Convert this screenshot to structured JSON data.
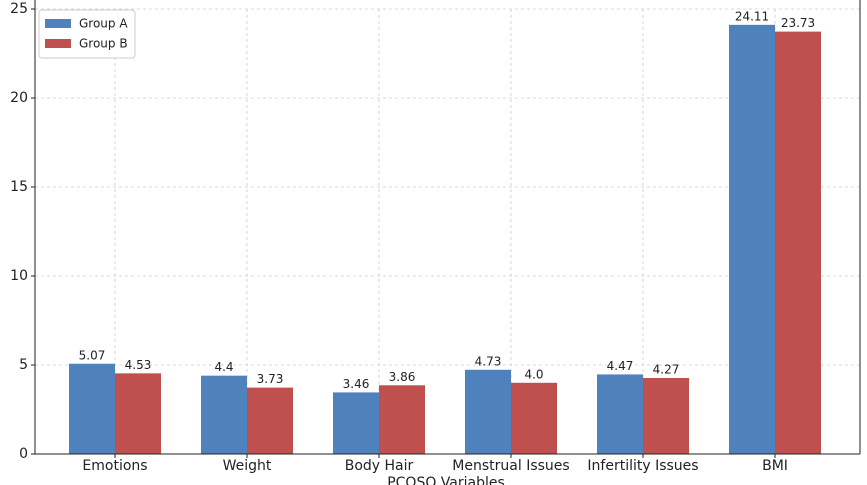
{
  "chart_data": {
    "type": "bar",
    "x_label": "PCOSQ Variables",
    "categories": [
      "Emotions",
      "Weight",
      "Body Hair",
      "Menstrual Issues",
      "Infertility Issues",
      "BMI"
    ],
    "series": [
      {
        "name": "Group A",
        "color": "#4f81bd",
        "values": [
          5.07,
          4.4,
          3.46,
          4.73,
          4.47,
          24.11
        ],
        "value_labels": [
          "5.07",
          "4.4",
          "3.46",
          "4.73",
          "4.47",
          "24.11"
        ]
      },
      {
        "name": "Group B",
        "color": "#c0504d",
        "values": [
          4.53,
          3.73,
          3.86,
          4,
          4.27,
          23.73
        ],
        "value_labels": [
          "4.53",
          "3.73",
          "3.86",
          "4.0",
          "4.27",
          "23.73"
        ]
      }
    ],
    "ylim": [
      0,
      25
    ],
    "yticks": [
      0,
      5,
      10,
      15,
      20,
      25
    ],
    "grid": true,
    "legend": "upper-left"
  }
}
